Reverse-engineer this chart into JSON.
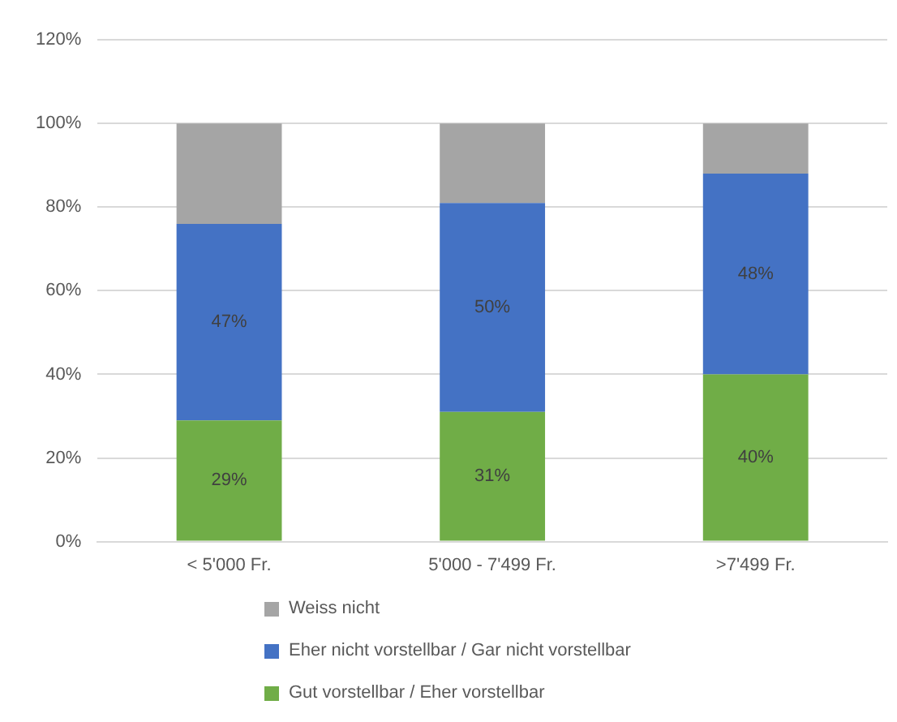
{
  "chart_data": {
    "type": "bar",
    "stacked": true,
    "categories": [
      "< 5'000 Fr.",
      "5'000 - 7'499 Fr.",
      ">7'499 Fr."
    ],
    "series": [
      {
        "name": "Gut vorstellbar / Eher vorstellbar",
        "color": "#70ad47",
        "values": [
          29,
          31,
          40
        ],
        "value_labels": [
          "29%",
          "31%",
          "40%"
        ]
      },
      {
        "name": "Eher nicht vorstellbar / Gar nicht vorstellbar",
        "color": "#4472c4",
        "values": [
          47,
          50,
          48
        ],
        "value_labels": [
          "47%",
          "50%",
          "48%"
        ]
      },
      {
        "name": "Weiss nicht",
        "color": "#a5a5a5",
        "values": [
          24,
          19,
          12
        ]
      }
    ],
    "ylim": [
      0,
      120
    ],
    "yticks": [
      {
        "value": 0,
        "label": "0%"
      },
      {
        "value": 20,
        "label": "20%"
      },
      {
        "value": 40,
        "label": "40%"
      },
      {
        "value": 60,
        "label": "60%"
      },
      {
        "value": 80,
        "label": "80%"
      },
      {
        "value": 100,
        "label": "100%"
      },
      {
        "value": 120,
        "label": "120%"
      }
    ],
    "grid": "y",
    "legend": "bottom left"
  }
}
